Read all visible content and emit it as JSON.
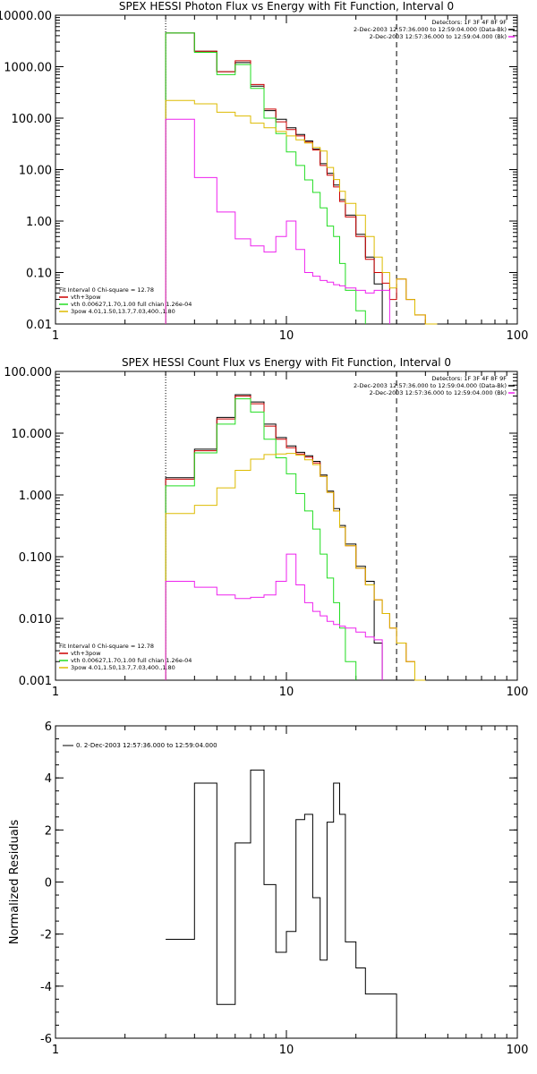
{
  "colors": {
    "total": "#000000",
    "vth_plus_3pow": "#cc0000",
    "vth": "#22dd22",
    "3pow": "#ddbb00",
    "background": "#ee22ee",
    "axes": "#000000"
  },
  "chart_data": [
    {
      "type": "line",
      "title": "SPEX HESSI Photon Flux vs Energy with Fit Function, Interval 0",
      "xscale": "log",
      "yscale": "log",
      "xlim": [
        1,
        100
      ],
      "ylim": [
        0.01,
        10000
      ],
      "xticks": [
        1,
        10,
        100
      ],
      "xtick_labels": [
        "1",
        "10",
        "100"
      ],
      "yticks": [
        0.01,
        0.1,
        1,
        10,
        100,
        1000,
        10000
      ],
      "ytick_labels": [
        "0.01",
        "0.10",
        "1.00",
        "10.00",
        "100.00",
        "1000.00",
        "10000.00"
      ],
      "energy_edges": [
        3,
        4,
        5,
        6,
        7,
        8,
        9,
        10,
        11,
        12,
        13,
        14,
        15,
        16,
        17,
        18,
        20,
        22,
        24,
        26,
        28,
        30,
        33,
        36,
        40,
        45
      ],
      "vlines": [
        {
          "x": 3,
          "style": "dotted"
        },
        {
          "x": 30,
          "style": "dashed"
        }
      ],
      "info_lines": [
        "Detectors: 1F 3F 4F 8F 9F",
        "2-Dec-2003 12:57:36.000 to 12:59:04.000 (Data-Bk)",
        "2-Dec-2003 12:57:36.000 to 12:59:04.000 (Bk)"
      ],
      "info_markers": [
        "",
        "total",
        "background"
      ],
      "fit_legend": {
        "header": "Fit Interval 0   Chi-square = 12.78",
        "items": [
          {
            "key": "vth_plus_3pow",
            "label": "vth+3pow"
          },
          {
            "key": "vth",
            "label": "vth 0.00627,1.70,1.00  full chian 1.26e-04"
          },
          {
            "key": "3pow",
            "label": "3pow 4.01,1.50,13.7,7.03,400.,1.80"
          }
        ]
      },
      "series": [
        {
          "key": "total",
          "values": [
            4500,
            2000,
            800,
            1200,
            420,
            140,
            95,
            65,
            48,
            36,
            25,
            13,
            8.5,
            5,
            2.6,
            1.3,
            0.55,
            0.2,
            0.06,
            0,
            0,
            0,
            0,
            0,
            0
          ]
        },
        {
          "key": "vth_plus_3pow",
          "values": [
            4500,
            2000,
            800,
            1300,
            450,
            150,
            85,
            60,
            45,
            34,
            24,
            12,
            7.8,
            4.6,
            2.4,
            1.2,
            0.5,
            0.18,
            0.1,
            0.062,
            0.03,
            0.075,
            0.03,
            0.015,
            0.01
          ]
        },
        {
          "key": "vth",
          "values": [
            4500,
            1900,
            700,
            1100,
            380,
            100,
            50,
            22,
            12,
            6.3,
            3.6,
            1.8,
            0.8,
            0.5,
            0.15,
            0.045,
            0.018,
            0,
            0,
            0,
            0,
            0,
            0,
            0,
            0
          ]
        },
        {
          "key": "3pow",
          "values": [
            220,
            190,
            130,
            110,
            80,
            65,
            55,
            45,
            38,
            33,
            27,
            23,
            11,
            6.4,
            3.8,
            2.2,
            1.3,
            0.5,
            0.2,
            0.1,
            0.05,
            0.075,
            0.03,
            0.015,
            0.01
          ]
        },
        {
          "key": "background",
          "values": [
            95,
            7,
            1.5,
            0.45,
            0.33,
            0.25,
            0.5,
            1,
            0.28,
            0.1,
            0.085,
            0.07,
            0.065,
            0.058,
            0.055,
            0.05,
            0.045,
            0.04,
            0.045,
            0.045,
            0,
            0,
            0,
            0,
            0
          ]
        }
      ]
    },
    {
      "type": "line",
      "title": "SPEX HESSI Count Flux vs Energy with Fit Function, Interval 0",
      "xscale": "log",
      "yscale": "log",
      "xlim": [
        1,
        100
      ],
      "ylim": [
        0.001,
        100
      ],
      "xticks": [
        1,
        10,
        100
      ],
      "xtick_labels": [
        "1",
        "10",
        "100"
      ],
      "yticks": [
        0.001,
        0.01,
        0.1,
        1,
        10,
        100
      ],
      "ytick_labels": [
        "0.001",
        "0.010",
        "0.100",
        "1.000",
        "10.000",
        "100.000"
      ],
      "energy_edges": [
        3,
        4,
        5,
        6,
        7,
        8,
        9,
        10,
        11,
        12,
        13,
        14,
        15,
        16,
        17,
        18,
        20,
        22,
        24,
        26,
        28,
        30,
        33,
        36,
        40,
        45
      ],
      "vlines": [
        {
          "x": 3,
          "style": "dotted"
        },
        {
          "x": 30,
          "style": "dashed"
        }
      ],
      "info_lines": [
        "Detectors: 1F 3F 4F 8F 9F",
        "2-Dec-2003 12:57:36.000 to 12:59:04.000 (Data-Bk)",
        "2-Dec-2003 12:57:36.000 to 12:59:04.000 (Bk)"
      ],
      "info_markers": [
        "",
        "total",
        "background"
      ],
      "fit_legend": {
        "header": "Fit Interval 0   Chi-square = 12.78",
        "items": [
          {
            "key": "vth_plus_3pow",
            "label": "vth+3pow"
          },
          {
            "key": "vth",
            "label": "vth 0.00627,1.70,1.00  full chian 1.26e-04"
          },
          {
            "key": "3pow",
            "label": "3pow 4.01,1.50,13.7,7.03,400.,1.80"
          }
        ]
      },
      "series": [
        {
          "key": "total",
          "values": [
            1.9,
            5.5,
            18,
            42,
            32,
            14,
            8.5,
            6.2,
            4.9,
            4.3,
            3.5,
            2.1,
            1.15,
            0.6,
            0.32,
            0.16,
            0.07,
            0.04,
            0.004,
            0.001,
            0,
            0,
            0,
            0,
            0
          ]
        },
        {
          "key": "vth_plus_3pow",
          "values": [
            1.8,
            5.2,
            17,
            40,
            30,
            13,
            8,
            5.8,
            4.6,
            4.1,
            3.3,
            2,
            1.1,
            0.55,
            0.3,
            0.15,
            0.065,
            0.035,
            0.02,
            0.012,
            0.007,
            0.004,
            0.002,
            0.001,
            0
          ]
        },
        {
          "key": "vth",
          "values": [
            1.4,
            4.8,
            14,
            36,
            22,
            8,
            4,
            2.2,
            1.05,
            0.55,
            0.28,
            0.11,
            0.045,
            0.018,
            0.007,
            0.002,
            0,
            0,
            0,
            0,
            0,
            0,
            0,
            0,
            0
          ]
        },
        {
          "key": "3pow",
          "values": [
            0.5,
            0.68,
            1.3,
            2.5,
            3.8,
            4.5,
            4.6,
            4.7,
            4.4,
            3.7,
            3.1,
            2,
            1.1,
            0.55,
            0.3,
            0.15,
            0.065,
            0.035,
            0.02,
            0.012,
            0.007,
            0.004,
            0.002,
            0.001,
            0
          ]
        },
        {
          "key": "background",
          "values": [
            0.04,
            0.032,
            0.024,
            0.021,
            0.022,
            0.024,
            0.04,
            0.11,
            0.035,
            0.018,
            0.013,
            0.011,
            0.009,
            0.008,
            0.0075,
            0.007,
            0.006,
            0.005,
            0.0045,
            0,
            0,
            0,
            0,
            0,
            0
          ]
        }
      ]
    },
    {
      "type": "line",
      "title": "",
      "xscale": "log",
      "yscale": "linear",
      "xlim": [
        1,
        100
      ],
      "ylim": [
        -6,
        6
      ],
      "xticks": [
        1,
        10,
        100
      ],
      "xtick_labels": [
        "1",
        "10",
        "100"
      ],
      "yticks": [
        -6,
        -4,
        -2,
        0,
        2,
        4,
        6
      ],
      "ytick_labels": [
        "-6",
        "-4",
        "-2",
        "0",
        "2",
        "4",
        "6"
      ],
      "ylabel": "Normalized Residuals",
      "energy_edges": [
        3,
        4,
        5,
        6,
        7,
        8,
        9,
        10,
        11,
        12,
        13,
        14,
        15,
        16,
        17,
        18,
        20,
        22,
        24,
        26,
        28,
        30
      ],
      "legend_text": "0. 2-Dec-2003 12:57:36.000 to 12:59:04.000",
      "series": [
        {
          "key": "total",
          "values": [
            -2.2,
            3.8,
            -4.7,
            1.5,
            4.3,
            -0.1,
            -2.7,
            -1.9,
            2.4,
            2.6,
            -0.6,
            -3.0,
            2.3,
            3.8,
            2.6,
            -2.3,
            -3.3,
            -4.3,
            -4.3,
            -4.3,
            -4.3
          ]
        }
      ]
    }
  ]
}
